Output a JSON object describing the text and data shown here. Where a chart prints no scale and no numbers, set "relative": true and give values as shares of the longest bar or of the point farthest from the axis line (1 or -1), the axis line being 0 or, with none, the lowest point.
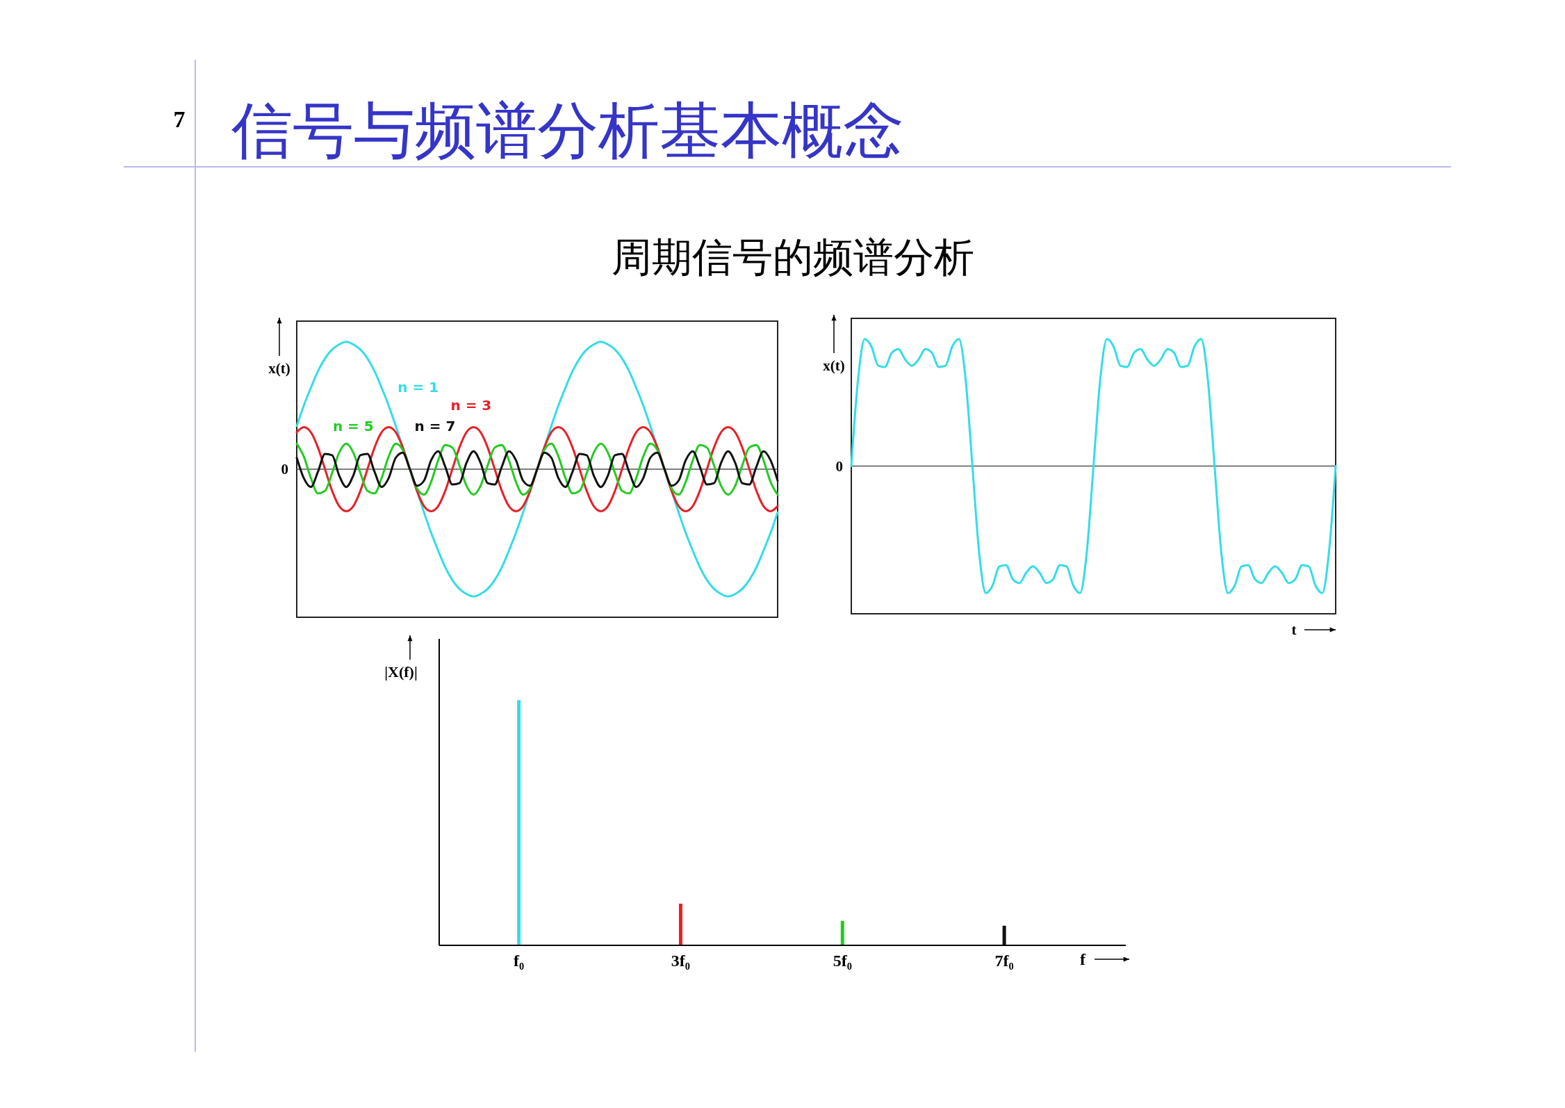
{
  "chart_data": [
    {
      "type": "line",
      "title": "信号与频谱分析基本概念",
      "subtitle": "周期信号的频谱分析",
      "ylabel": "x(t)",
      "relative": true,
      "annotations": [
        "7",
        "0"
      ],
      "categories": [
        null,
        null,
        null,
        null,
        null,
        null,
        null,
        null,
        null,
        null,
        null,
        null,
        null,
        null,
        null,
        null,
        null,
        null,
        null,
        null,
        null,
        null,
        null,
        null,
        null,
        null,
        null,
        null,
        null,
        null,
        null,
        null,
        null,
        null,
        null,
        null,
        null,
        null,
        null,
        null,
        null,
        null,
        null,
        null,
        null,
        null,
        null,
        null,
        null,
        null,
        null,
        null,
        null,
        null,
        null,
        null,
        null,
        null,
        null,
        null,
        null,
        null,
        null,
        null,
        null,
        null,
        null,
        null,
        null
      ],
      "series": [
        {
          "name": "n = 1",
          "color": "#33dde6",
          "values": [
            0.34,
            0.5,
            0.64,
            0.77,
            0.87,
            0.94,
            0.98,
            1,
            0.98,
            0.94,
            0.87,
            0.77,
            0.64,
            0.5,
            0.34,
            0.17,
            0,
            -0.17,
            -0.34,
            -0.5,
            -0.64,
            -0.77,
            -0.87,
            -0.94,
            -0.98,
            -1,
            -0.98,
            -0.94,
            -0.87,
            -0.77,
            -0.64,
            -0.5,
            -0.34,
            -0.17,
            0,
            0.17,
            0.34,
            0.5,
            0.64,
            0.77,
            0.87,
            0.94,
            0.98,
            1,
            0.98,
            0.94,
            0.87,
            0.77,
            0.64,
            0.5,
            0.34,
            0.17,
            0,
            -0.17,
            -0.34,
            -0.5,
            -0.64,
            -0.77,
            -0.87,
            -0.94,
            -0.98,
            -1,
            -0.98,
            -0.94,
            -0.87,
            -0.77,
            -0.64,
            -0.5,
            -0.34
          ]
        },
        {
          "name": "n = 3",
          "color": "#e82028",
          "values": [
            0.29,
            0.33,
            0.29,
            0.17,
            0,
            -0.17,
            -0.29,
            -0.33,
            -0.29,
            -0.17,
            0,
            0.17,
            0.29,
            0.33,
            0.29,
            0.17,
            0,
            -0.17,
            -0.29,
            -0.33,
            -0.29,
            -0.17,
            0,
            0.17,
            0.29,
            0.33,
            0.29,
            0.17,
            0,
            -0.17,
            -0.29,
            -0.33,
            -0.29,
            -0.17,
            0,
            0.17,
            0.29,
            0.33,
            0.29,
            0.17,
            0,
            -0.17,
            -0.29,
            -0.33,
            -0.29,
            -0.17,
            0,
            0.17,
            0.29,
            0.33,
            0.29,
            0.17,
            0,
            -0.17,
            -0.29,
            -0.33,
            -0.29,
            -0.17,
            0,
            0.17,
            0.29,
            0.33,
            0.29,
            0.17,
            0,
            -0.17,
            -0.29,
            -0.33,
            -0.29
          ]
        },
        {
          "name": "n = 5",
          "color": "#22cc22",
          "values": [
            0.2,
            0.1,
            -0.07,
            -0.19,
            -0.17,
            -0.03,
            0.13,
            0.2,
            0.13,
            -0.03,
            -0.17,
            -0.19,
            -0.07,
            0.1,
            0.2,
            0.15,
            0,
            -0.15,
            -0.2,
            -0.1,
            0.07,
            0.19,
            0.17,
            0.03,
            -0.13,
            -0.2,
            -0.13,
            0.03,
            0.17,
            0.19,
            0.07,
            -0.1,
            -0.2,
            -0.15,
            0,
            0.15,
            0.2,
            0.1,
            -0.07,
            -0.19,
            -0.17,
            -0.03,
            0.13,
            0.2,
            0.13,
            -0.03,
            -0.17,
            -0.19,
            -0.07,
            0.1,
            0.2,
            0.15,
            0,
            -0.15,
            -0.2,
            -0.1,
            0.07,
            0.19,
            0.17,
            0.03,
            -0.13,
            -0.2,
            -0.13,
            0.03,
            0.17,
            0.19,
            0.07,
            -0.1,
            -0.2
          ]
        },
        {
          "name": "n = 7",
          "color": "#111111",
          "values": [
            0.09,
            -0.07,
            -0.14,
            -0.02,
            0.12,
            0.11,
            -0.05,
            -0.14,
            -0.05,
            0.11,
            0.12,
            -0.02,
            -0.14,
            -0.07,
            0.09,
            0.13,
            0,
            -0.13,
            -0.09,
            0.07,
            0.14,
            0.02,
            -0.12,
            -0.11,
            0.05,
            0.14,
            0.05,
            -0.11,
            -0.12,
            0.02,
            0.14,
            0.07,
            -0.09,
            -0.13,
            0,
            0.13,
            0.09,
            -0.07,
            -0.14,
            -0.02,
            0.12,
            0.11,
            -0.05,
            -0.14,
            -0.05,
            0.11,
            0.12,
            -0.02,
            -0.14,
            -0.07,
            0.09,
            0.13,
            0,
            -0.13,
            -0.09,
            0.07,
            0.14,
            0.02,
            -0.12,
            -0.11,
            0.05,
            0.14,
            0.05,
            -0.11,
            -0.12,
            0.02,
            0.14,
            0.07,
            -0.09
          ]
        }
      ]
    },
    {
      "type": "line",
      "ylabel": "x(t)",
      "xlabel": "t",
      "relative": true,
      "annotations": [
        "0"
      ],
      "categories": [
        null,
        null,
        null,
        null,
        null,
        null,
        null,
        null,
        null,
        null,
        null,
        null,
        null,
        null,
        null,
        null,
        null,
        null,
        null,
        null,
        null,
        null,
        null,
        null,
        null,
        null,
        null,
        null,
        null,
        null,
        null,
        null,
        null,
        null,
        null,
        null,
        null,
        null,
        null,
        null,
        null,
        null,
        null,
        null,
        null,
        null,
        null,
        null,
        null,
        null,
        null,
        null,
        null,
        null,
        null,
        null,
        null,
        null,
        null,
        null,
        null,
        null,
        null,
        null,
        null,
        null,
        null,
        null,
        null,
        null,
        null,
        null,
        null
      ],
      "series": [
        {
          "color": "#33dde6",
          "values": [
            0,
            0.68,
            1,
            0.94,
            0.79,
            0.78,
            0.89,
            0.92,
            0.84,
            0.79,
            0.84,
            0.92,
            0.89,
            0.78,
            0.79,
            0.94,
            1,
            0.68,
            0,
            -0.68,
            -1,
            -0.94,
            -0.79,
            -0.78,
            -0.89,
            -0.92,
            -0.84,
            -0.79,
            -0.84,
            -0.92,
            -0.89,
            -0.78,
            -0.79,
            -0.94,
            -1,
            -0.68,
            0,
            0.68,
            1,
            0.94,
            0.79,
            0.78,
            0.89,
            0.92,
            0.84,
            0.79,
            0.84,
            0.92,
            0.89,
            0.78,
            0.79,
            0.94,
            1,
            0.68,
            0,
            -0.68,
            -1,
            -0.94,
            -0.79,
            -0.78,
            -0.89,
            -0.92,
            -0.84,
            -0.79,
            -0.84,
            -0.92,
            -0.89,
            -0.78,
            -0.79,
            -0.94,
            -1,
            -0.68,
            0
          ]
        }
      ]
    },
    {
      "type": "bar",
      "ylabel": "|X(f)|",
      "xlabel": "f",
      "relative": true,
      "categories": [
        "f₀",
        "3f₀",
        "5f₀",
        "7f₀"
      ],
      "values": [
        1,
        0.17,
        0.1,
        0.08
      ],
      "colors": [
        "#33dde6",
        "#e82028",
        "#22cc22",
        "#111111"
      ]
    }
  ]
}
